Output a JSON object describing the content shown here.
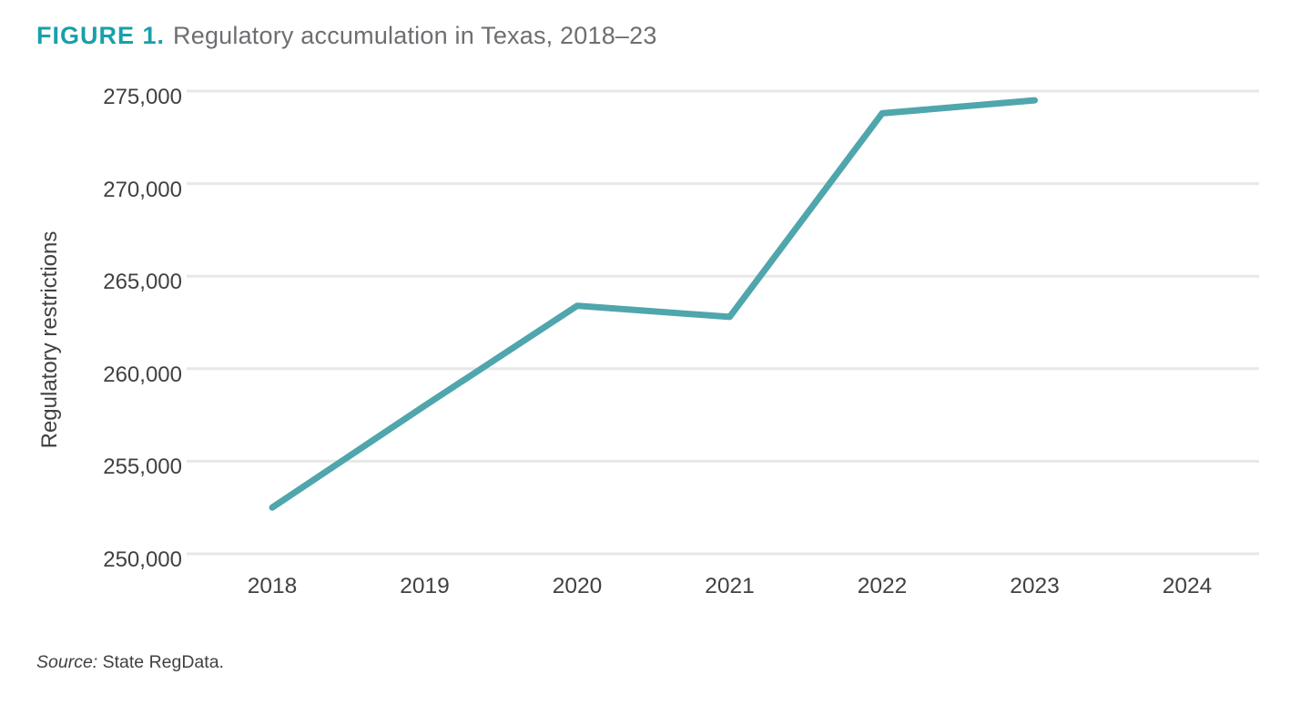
{
  "figure": {
    "label": "FIGURE 1.",
    "title": "Regulatory accumulation in Texas, 2018–23"
  },
  "source": {
    "prefix": "Source:",
    "text": " State RegData."
  },
  "colors": {
    "accent_teal": "#199FAD",
    "line_teal": "#4FA6AC",
    "title_gray": "#6D6E71",
    "axis_text": "#414042",
    "gridline": "#E7E7E8"
  },
  "chart_data": {
    "type": "line",
    "title": "Regulatory accumulation in Texas, 2018–23",
    "xlabel": "",
    "ylabel": "Regulatory restrictions",
    "categories": [
      "2018",
      "2019",
      "2020",
      "2021",
      "2022",
      "2023",
      "2024"
    ],
    "series": [
      {
        "name": "Regulatory restrictions",
        "color": "#4FA6AC",
        "values": [
          252500,
          258000,
          263400,
          262800,
          273800,
          274500,
          null
        ]
      }
    ],
    "ylim": [
      250000,
      275000
    ],
    "yticks": [
      275000,
      270000,
      265000,
      260000,
      255000,
      250000
    ],
    "ytick_labels": [
      "275,000",
      "270,000",
      "265,000",
      "260,000",
      "255,000",
      "250,000"
    ],
    "grid": "horizontal-only",
    "legend": "none"
  }
}
